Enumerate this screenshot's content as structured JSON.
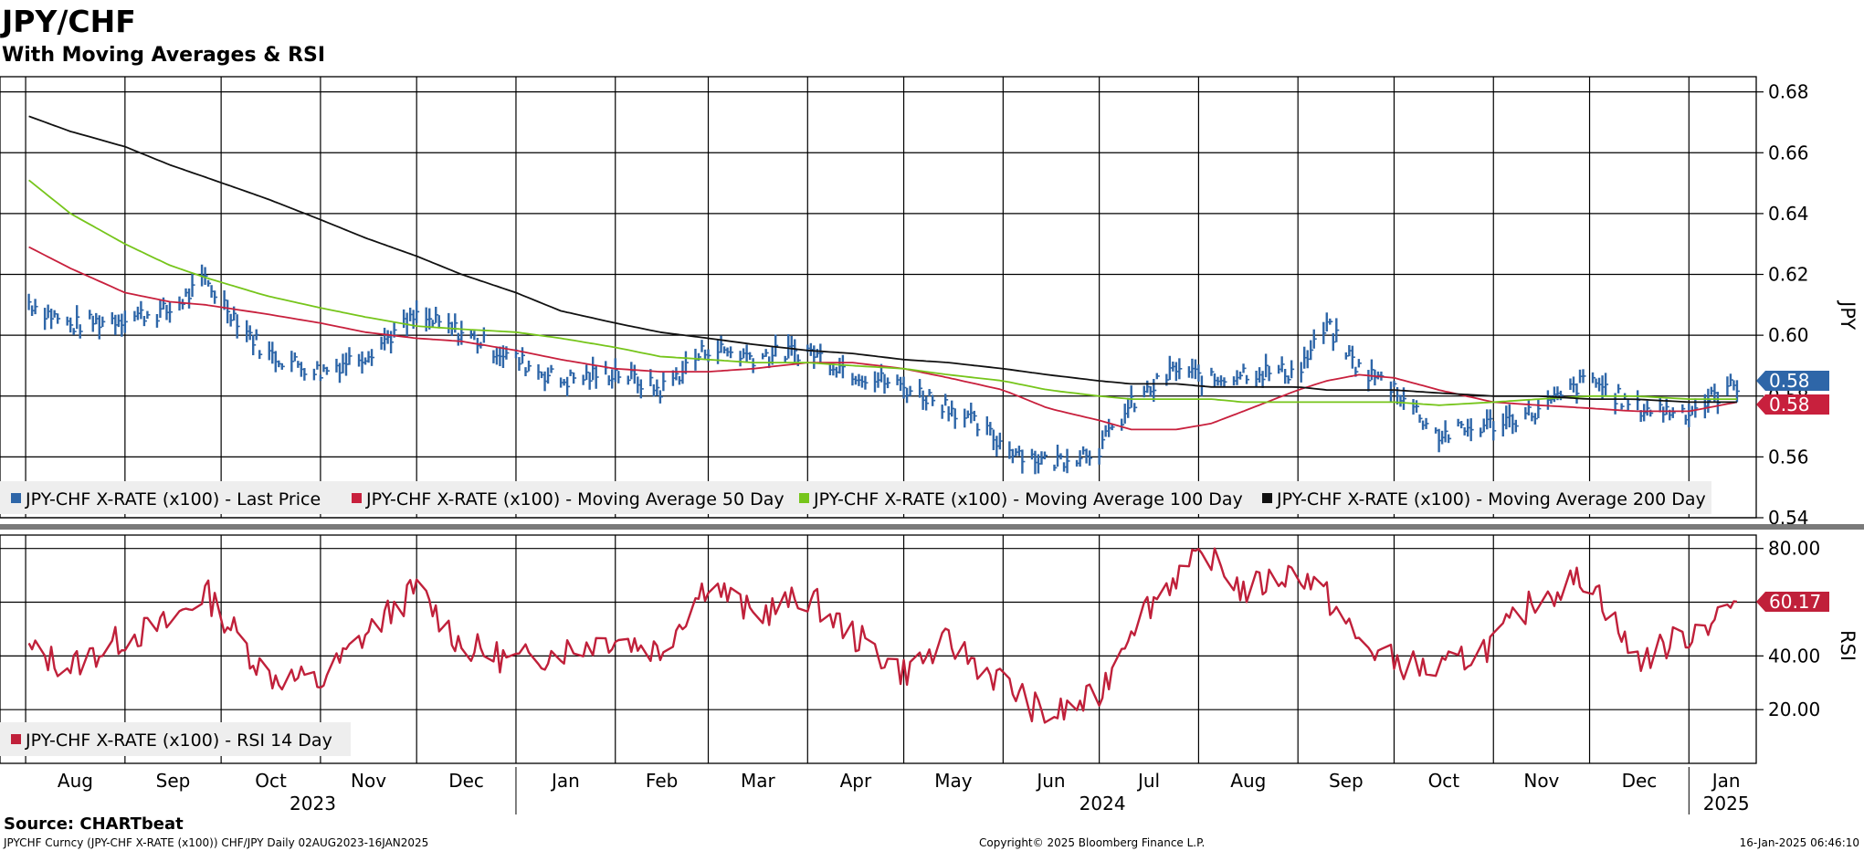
{
  "header": {
    "title": "JPY/CHF",
    "subtitle": "With Moving Averages & RSI"
  },
  "footer": {
    "source": "Source: CHARTbeat",
    "ticker_info": "JPYCHF Curncy (JPY-CHF X-RATE (x100)) CHF/JPY  Daily 02AUG2023-16JAN2025",
    "copyright": "Copyright© 2025 Bloomberg Finance L.P.",
    "timestamp": "16-Jan-2025 06:46:10"
  },
  "colors": {
    "price": "#2e66a8",
    "ma50": "#c8203d",
    "ma100": "#76c51b",
    "ma200": "#111111",
    "rsi": "#c0203a",
    "grid": "#000000"
  },
  "chart_data": [
    {
      "type": "line",
      "panel": "price",
      "ylabel": "JPY",
      "ylim": [
        0.54,
        0.68
      ],
      "yticks": [
        "0.54",
        "0.56",
        "0.58",
        "0.60",
        "0.62",
        "0.64",
        "0.66",
        "0.68"
      ],
      "grid": true,
      "legend_position": "bottom",
      "x_month_labels": [
        "Aug",
        "Sep",
        "Oct",
        "Nov",
        "Dec",
        "Jan",
        "Feb",
        "Mar",
        "Apr",
        "May",
        "Jun",
        "Jul",
        "Aug",
        "Sep",
        "Oct",
        "Nov",
        "Dec",
        "Jan"
      ],
      "x_year_labels": [
        "2023",
        "2024",
        "2025"
      ],
      "x": [
        "2023-08-02",
        "2023-08-15",
        "2023-09-01",
        "2023-09-15",
        "2023-09-26",
        "2023-10-15",
        "2023-11-01",
        "2023-11-15",
        "2023-12-01",
        "2023-12-15",
        "2024-01-01",
        "2024-01-15",
        "2024-02-01",
        "2024-02-15",
        "2024-03-01",
        "2024-03-15",
        "2024-04-01",
        "2024-04-15",
        "2024-05-01",
        "2024-05-15",
        "2024-06-01",
        "2024-06-15",
        "2024-07-01",
        "2024-07-11",
        "2024-07-25",
        "2024-08-05",
        "2024-08-15",
        "2024-09-01",
        "2024-09-10",
        "2024-09-20",
        "2024-10-01",
        "2024-10-15",
        "2024-11-01",
        "2024-11-15",
        "2024-12-01",
        "2024-12-15",
        "2025-01-01",
        "2025-01-16"
      ],
      "series": [
        {
          "name": "JPY-CHF X-RATE (x100) - Last Price",
          "values": [
            0.611,
            0.603,
            0.606,
            0.608,
            0.618,
            0.594,
            0.588,
            0.594,
            0.606,
            0.601,
            0.592,
            0.585,
            0.588,
            0.582,
            0.596,
            0.593,
            0.595,
            0.588,
            0.583,
            0.577,
            0.564,
            0.558,
            0.563,
            0.577,
            0.589,
            0.585,
            0.588,
            0.588,
            0.603,
            0.589,
            0.583,
            0.567,
            0.571,
            0.575,
            0.586,
            0.576,
            0.575,
            0.584
          ]
        },
        {
          "name": "JPY-CHF X-RATE (x100) - Moving Average 50 Day",
          "values": [
            0.629,
            0.622,
            0.614,
            0.611,
            0.61,
            0.607,
            0.604,
            0.601,
            0.599,
            0.598,
            0.595,
            0.592,
            0.589,
            0.588,
            0.588,
            0.589,
            0.591,
            0.591,
            0.589,
            0.586,
            0.582,
            0.576,
            0.572,
            0.569,
            0.569,
            0.571,
            0.575,
            0.582,
            0.585,
            0.587,
            0.586,
            0.582,
            0.578,
            0.577,
            0.576,
            0.575,
            0.575,
            0.578
          ]
        },
        {
          "name": "JPY-CHF X-RATE (x100) - Moving Average 100 Day",
          "values": [
            0.651,
            0.64,
            0.63,
            0.623,
            0.619,
            0.613,
            0.609,
            0.606,
            0.603,
            0.602,
            0.601,
            0.599,
            0.596,
            0.593,
            0.592,
            0.591,
            0.591,
            0.59,
            0.589,
            0.587,
            0.585,
            0.582,
            0.58,
            0.579,
            0.579,
            0.579,
            0.578,
            0.578,
            0.578,
            0.578,
            0.578,
            0.577,
            0.578,
            0.579,
            0.58,
            0.58,
            0.579,
            0.579
          ]
        },
        {
          "name": "JPY-CHF X-RATE (x100) - Moving Average 200 Day",
          "values": [
            0.672,
            0.667,
            0.662,
            0.656,
            0.652,
            0.645,
            0.638,
            0.632,
            0.626,
            0.62,
            0.614,
            0.608,
            0.604,
            0.601,
            0.599,
            0.597,
            0.595,
            0.594,
            0.592,
            0.591,
            0.589,
            0.587,
            0.585,
            0.584,
            0.584,
            0.583,
            0.583,
            0.583,
            0.582,
            0.582,
            0.582,
            0.581,
            0.58,
            0.58,
            0.579,
            0.579,
            0.578,
            0.578
          ]
        }
      ],
      "last_value_labels": [
        {
          "series": "JPY-CHF X-RATE (x100) - Last Price",
          "text": "0.58"
        },
        {
          "series": "JPY-CHF X-RATE (x100) - Moving Average 50 Day",
          "text": "0.58"
        }
      ]
    },
    {
      "type": "line",
      "panel": "rsi",
      "ylabel": "RSI",
      "ylim": [
        0,
        82
      ],
      "yticks": [
        "20.00",
        "40.00",
        "60.00",
        "80.00"
      ],
      "grid": true,
      "legend_position": "bottom-left",
      "x": [
        "2023-08-02",
        "2023-08-15",
        "2023-09-01",
        "2023-09-15",
        "2023-09-26",
        "2023-10-15",
        "2023-11-01",
        "2023-11-15",
        "2023-12-01",
        "2023-12-15",
        "2024-01-01",
        "2024-01-15",
        "2024-02-01",
        "2024-02-15",
        "2024-03-01",
        "2024-03-15",
        "2024-04-01",
        "2024-04-15",
        "2024-05-01",
        "2024-05-15",
        "2024-06-01",
        "2024-06-15",
        "2024-07-01",
        "2024-07-11",
        "2024-07-25",
        "2024-08-05",
        "2024-08-15",
        "2024-09-01",
        "2024-09-10",
        "2024-09-20",
        "2024-10-01",
        "2024-10-15",
        "2024-11-01",
        "2024-11-15",
        "2024-12-01",
        "2024-12-15",
        "2025-01-01",
        "2025-01-16"
      ],
      "series": [
        {
          "name": "JPY-CHF X-RATE (x100) - RSI 14 Day",
          "values": [
            42,
            36,
            47,
            52,
            64,
            33,
            30,
            48,
            65,
            44,
            38,
            42,
            47,
            42,
            68,
            55,
            62,
            48,
            34,
            45,
            30,
            17,
            25,
            52,
            70,
            78,
            64,
            72,
            62,
            45,
            38,
            34,
            45,
            62,
            70,
            38,
            48,
            60.17
          ]
        }
      ],
      "last_value_labels": [
        {
          "series": "JPY-CHF X-RATE (x100) - RSI 14 Day",
          "text": "60.17"
        }
      ]
    }
  ]
}
